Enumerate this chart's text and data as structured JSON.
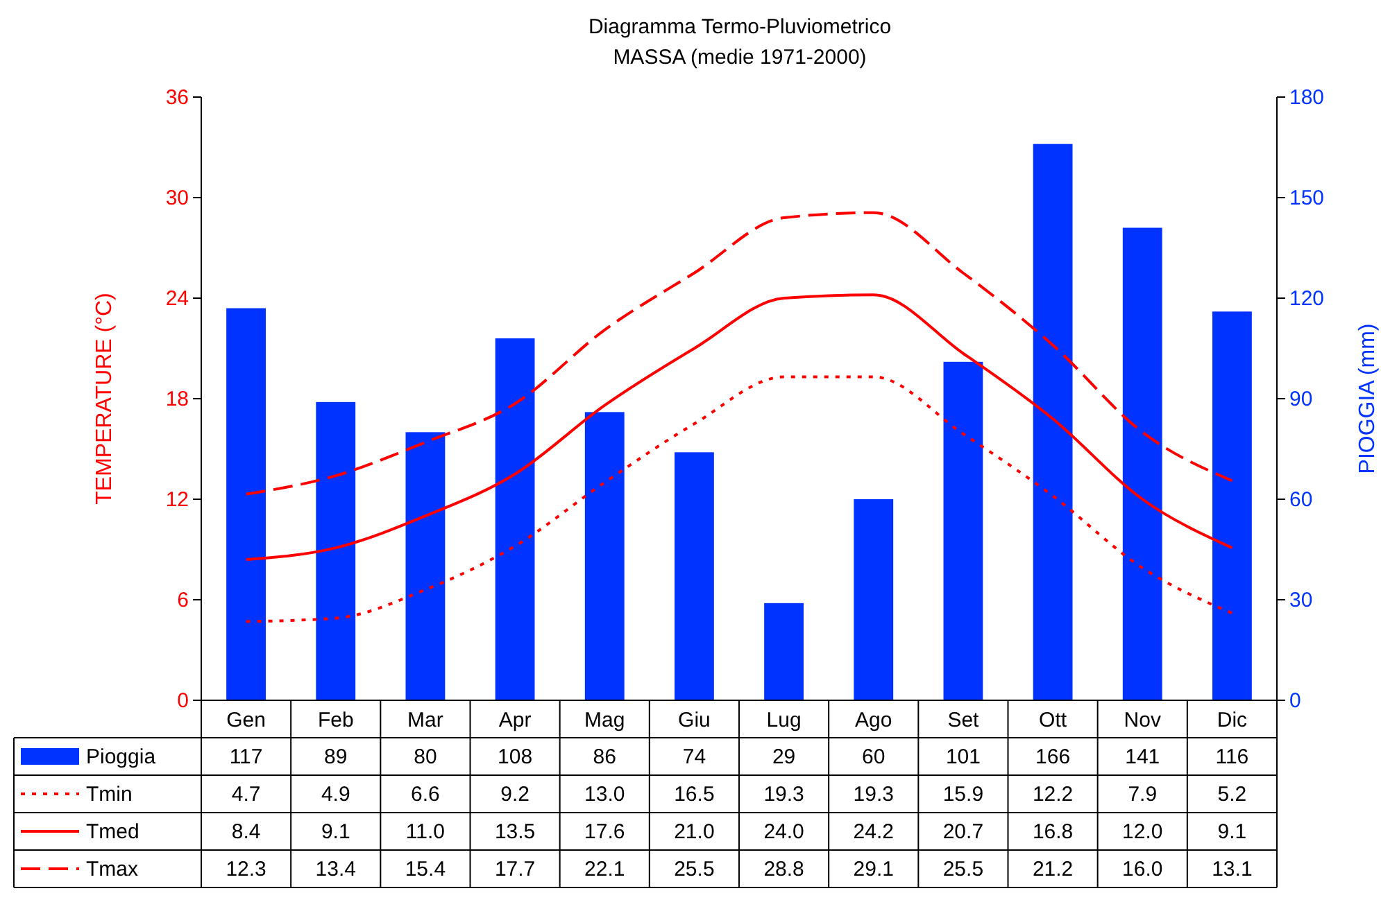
{
  "chart_data": {
    "type": "bar",
    "title": "Diagramma Termo-Pluviometrico",
    "subtitle": "MASSA (medie 1971-2000)",
    "ylabel": "TEMPERATURE (°C)",
    "y2label": "PIOGGIA (mm)",
    "categories": [
      "Gen",
      "Feb",
      "Mar",
      "Apr",
      "Mag",
      "Giu",
      "Lug",
      "Ago",
      "Set",
      "Ott",
      "Nov",
      "Dic"
    ],
    "ylim": [
      0,
      36
    ],
    "yticks": [
      0,
      6,
      12,
      18,
      24,
      30,
      36
    ],
    "y2lim": [
      0,
      180
    ],
    "y2ticks": [
      0,
      30,
      60,
      90,
      120,
      150,
      180
    ],
    "legend": "bottom",
    "series": [
      {
        "name": "Pioggia",
        "axis": "y2",
        "color": "#0033ff",
        "values": [
          117,
          89,
          80,
          108,
          86,
          74,
          29,
          60,
          101,
          166,
          141,
          116
        ],
        "value_labels": [
          "117",
          "89",
          "80",
          "108",
          "86",
          "74",
          "29",
          "60",
          "101",
          "166",
          "141",
          "116"
        ]
      },
      {
        "name": "Tmin",
        "type": "line",
        "axis": "y",
        "color": "#ff0000",
        "line_style": "dotted",
        "values": [
          4.7,
          4.9,
          6.6,
          9.2,
          13.0,
          16.5,
          19.3,
          19.3,
          15.9,
          12.2,
          7.9,
          5.2
        ],
        "value_labels": [
          "4.7",
          "4.9",
          "6.6",
          "9.2",
          "13.0",
          "16.5",
          "19.3",
          "19.3",
          "15.9",
          "12.2",
          "7.9",
          "5.2"
        ]
      },
      {
        "name": "Tmed",
        "type": "line",
        "axis": "y",
        "color": "#ff0000",
        "line_style": "solid",
        "values": [
          8.4,
          9.1,
          11.0,
          13.5,
          17.6,
          21.0,
          24.0,
          24.2,
          20.7,
          16.8,
          12.0,
          9.1
        ],
        "value_labels": [
          "8.4",
          "9.1",
          "11.0",
          "13.5",
          "17.6",
          "21.0",
          "24.0",
          "24.2",
          "20.7",
          "16.8",
          "12.0",
          "9.1"
        ]
      },
      {
        "name": "Tmax",
        "type": "line",
        "axis": "y",
        "color": "#ff0000",
        "line_style": "dashed",
        "values": [
          12.3,
          13.4,
          15.4,
          17.7,
          22.1,
          25.5,
          28.8,
          29.1,
          25.5,
          21.2,
          16.0,
          13.1
        ],
        "value_labels": [
          "12.3",
          "13.4",
          "15.4",
          "17.7",
          "22.1",
          "25.5",
          "28.8",
          "29.1",
          "25.5",
          "21.2",
          "16.0",
          "13.1"
        ]
      }
    ]
  }
}
